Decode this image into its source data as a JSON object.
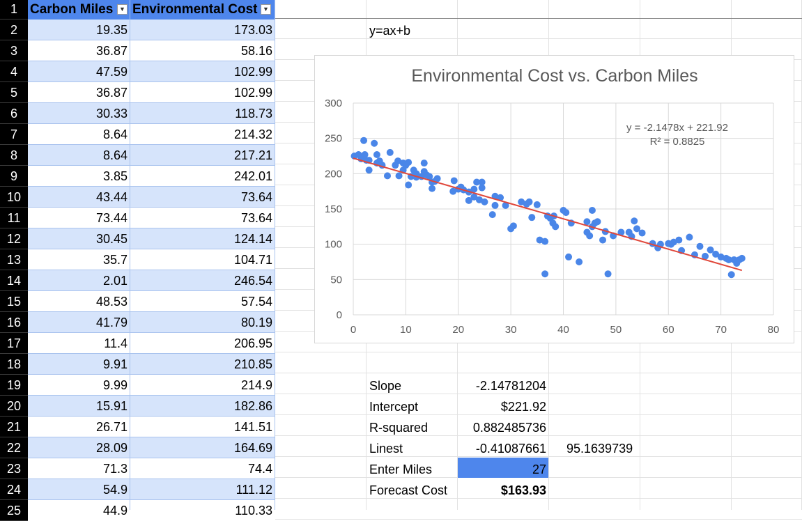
{
  "table": {
    "headers": [
      "Carbon Miles",
      "Environmental Cost"
    ],
    "row_numbers": [
      "1",
      "2",
      "3",
      "4",
      "5",
      "6",
      "7",
      "8",
      "9",
      "10",
      "11",
      "12",
      "13",
      "14",
      "15",
      "16",
      "17",
      "18",
      "19",
      "20",
      "21",
      "22",
      "23",
      "24",
      "25"
    ],
    "rows": [
      [
        "19.35",
        "173.03"
      ],
      [
        "36.87",
        "58.16"
      ],
      [
        "47.59",
        "102.99"
      ],
      [
        "36.87",
        "102.99"
      ],
      [
        "30.33",
        "118.73"
      ],
      [
        "8.64",
        "214.32"
      ],
      [
        "8.64",
        "217.21"
      ],
      [
        "3.85",
        "242.01"
      ],
      [
        "43.44",
        "73.64"
      ],
      [
        "73.44",
        "73.64"
      ],
      [
        "30.45",
        "124.14"
      ],
      [
        "35.7",
        "104.71"
      ],
      [
        "2.01",
        "246.54"
      ],
      [
        "48.53",
        "57.54"
      ],
      [
        "41.79",
        "80.19"
      ],
      [
        "11.4",
        "206.95"
      ],
      [
        "9.91",
        "210.85"
      ],
      [
        "9.99",
        "214.9"
      ],
      [
        "15.91",
        "182.86"
      ],
      [
        "26.71",
        "141.51"
      ],
      [
        "28.09",
        "164.69"
      ],
      [
        "71.3",
        "74.4"
      ],
      [
        "54.9",
        "111.12"
      ],
      [
        "44.9",
        "110.33"
      ]
    ]
  },
  "side": {
    "formula_note": "y=ax+b",
    "slope_label": "Slope",
    "slope_value": "-2.14781204",
    "intercept_label": "Intercept",
    "intercept_value": "$221.92",
    "rsq_label": "R-squared",
    "rsq_value": "0.882485736",
    "linest_label": "Linest",
    "linest_value1": "-0.41087661",
    "linest_value2": "95.1639739",
    "enter_label": "Enter Miles",
    "enter_value": "27",
    "forecast_label": "Forecast Cost",
    "forecast_value": "$163.93"
  },
  "chart_data": {
    "type": "scatter",
    "title": "Environmental Cost vs. Carbon Miles",
    "xlim": [
      0,
      80
    ],
    "ylim": [
      0,
      300
    ],
    "xticks": [
      "0",
      "10",
      "20",
      "30",
      "40",
      "50",
      "60",
      "70",
      "80"
    ],
    "yticks": [
      "0",
      "50",
      "100",
      "150",
      "200",
      "250",
      "300"
    ],
    "grid": true,
    "trendline": {
      "slope": -2.1478,
      "intercept": 221.92,
      "x_range": [
        0,
        74
      ]
    },
    "equation_label": "y = -2.1478x + 221.92",
    "r2_label": "R² = 0.8825",
    "colors": {
      "points": "#4a86e8",
      "trendline": "#e0473a"
    },
    "points": [
      [
        0.2,
        225
      ],
      [
        1,
        227
      ],
      [
        1.5,
        221
      ],
      [
        2,
        247
      ],
      [
        2.2,
        227
      ],
      [
        2.5,
        219
      ],
      [
        3,
        205
      ],
      [
        3,
        219
      ],
      [
        4,
        243
      ],
      [
        4.5,
        227
      ],
      [
        4.5,
        215
      ],
      [
        5,
        218
      ],
      [
        5.5,
        212
      ],
      [
        6.5,
        197
      ],
      [
        7,
        230
      ],
      [
        8,
        212
      ],
      [
        8.5,
        218
      ],
      [
        8.7,
        197
      ],
      [
        9.5,
        215
      ],
      [
        9.5,
        205
      ],
      [
        10,
        212
      ],
      [
        10.5,
        216
      ],
      [
        10.5,
        184
      ],
      [
        11,
        196
      ],
      [
        11.5,
        205
      ],
      [
        12,
        200
      ],
      [
        12,
        195
      ],
      [
        13,
        196
      ],
      [
        13.5,
        215
      ],
      [
        13.5,
        203
      ],
      [
        14,
        198
      ],
      [
        14.5,
        196
      ],
      [
        15,
        179
      ],
      [
        15,
        188
      ],
      [
        15.5,
        189
      ],
      [
        16,
        193
      ],
      [
        19,
        175
      ],
      [
        19.2,
        190
      ],
      [
        20,
        178
      ],
      [
        20.5,
        181
      ],
      [
        21,
        177
      ],
      [
        22,
        174
      ],
      [
        22,
        162
      ],
      [
        23,
        178
      ],
      [
        23,
        167
      ],
      [
        23.5,
        188
      ],
      [
        24,
        163
      ],
      [
        24.5,
        180
      ],
      [
        24.5,
        188
      ],
      [
        25,
        160
      ],
      [
        26.5,
        142
      ],
      [
        27,
        168
      ],
      [
        27,
        155
      ],
      [
        28,
        166
      ],
      [
        29,
        155
      ],
      [
        30,
        122
      ],
      [
        30.5,
        126
      ],
      [
        32,
        160
      ],
      [
        33,
        157
      ],
      [
        33.5,
        160
      ],
      [
        34,
        138
      ],
      [
        35,
        156
      ],
      [
        35.5,
        106
      ],
      [
        36.5,
        104
      ],
      [
        36.5,
        58
      ],
      [
        37,
        140
      ],
      [
        37.5,
        137
      ],
      [
        38,
        130
      ],
      [
        38.2,
        140
      ],
      [
        38.5,
        125
      ],
      [
        40,
        148
      ],
      [
        40.5,
        145
      ],
      [
        41,
        82
      ],
      [
        41.5,
        130
      ],
      [
        43,
        75
      ],
      [
        44.5,
        132
      ],
      [
        44.5,
        117
      ],
      [
        45,
        112
      ],
      [
        45.5,
        148
      ],
      [
        45.5,
        125
      ],
      [
        46,
        130
      ],
      [
        46.5,
        132
      ],
      [
        47.5,
        106
      ],
      [
        48,
        118
      ],
      [
        48.5,
        58
      ],
      [
        49.5,
        112
      ],
      [
        51,
        117
      ],
      [
        52.5,
        117
      ],
      [
        53,
        111
      ],
      [
        53.5,
        133
      ],
      [
        54,
        122
      ],
      [
        55,
        116
      ],
      [
        57,
        101
      ],
      [
        58,
        95
      ],
      [
        58.5,
        100
      ],
      [
        60,
        101
      ],
      [
        60.5,
        100
      ],
      [
        61,
        103
      ],
      [
        62,
        106
      ],
      [
        62.5,
        91
      ],
      [
        64,
        110
      ],
      [
        65,
        85
      ],
      [
        66,
        97
      ],
      [
        67,
        83
      ],
      [
        68,
        92
      ],
      [
        69,
        86
      ],
      [
        70,
        82
      ],
      [
        71,
        80
      ],
      [
        71.5,
        78
      ],
      [
        72,
        57
      ],
      [
        72.5,
        78
      ],
      [
        73,
        73
      ],
      [
        73.5,
        78
      ],
      [
        74,
        80
      ]
    ]
  }
}
